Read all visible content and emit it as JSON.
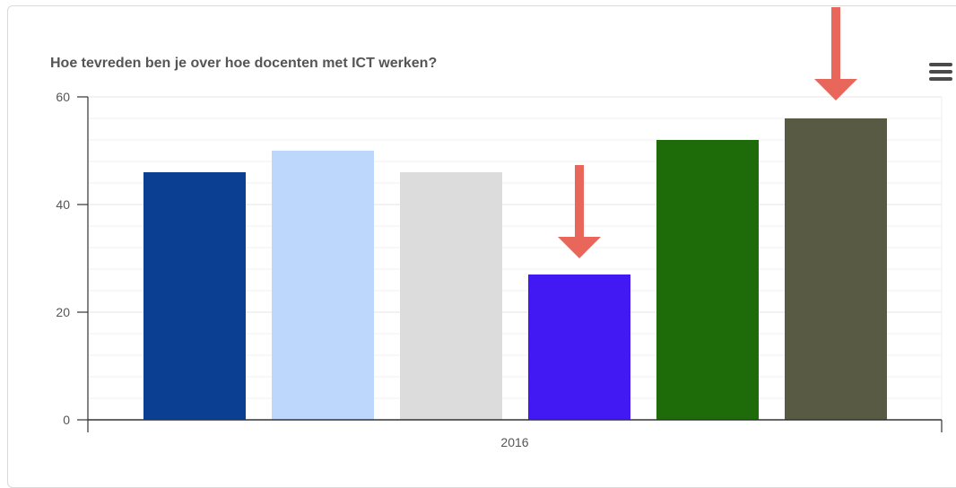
{
  "chart_data": {
    "type": "bar",
    "title": "Hoe tevreden ben je over hoe docenten met ICT werken?",
    "categories": [
      "2016"
    ],
    "series": [
      {
        "values": [
          46
        ],
        "color": "#0a3f91"
      },
      {
        "values": [
          50
        ],
        "color": "#bdd6fc"
      },
      {
        "values": [
          46
        ],
        "color": "#dcdcdc"
      },
      {
        "values": [
          27
        ],
        "color": "#4219f2"
      },
      {
        "values": [
          52
        ],
        "color": "#1e6b09"
      },
      {
        "values": [
          56
        ],
        "color": "#595a43"
      }
    ],
    "ylim": [
      0,
      60
    ],
    "yticks": [
      0,
      20,
      40,
      60
    ],
    "grid": true,
    "annotations": [
      {
        "type": "arrow",
        "target_series_index": 3,
        "color": "#e8675a"
      },
      {
        "type": "arrow",
        "target_series_index": 5,
        "color": "#e8675a"
      }
    ]
  },
  "menu": {
    "icon": "hamburger-menu-icon"
  }
}
